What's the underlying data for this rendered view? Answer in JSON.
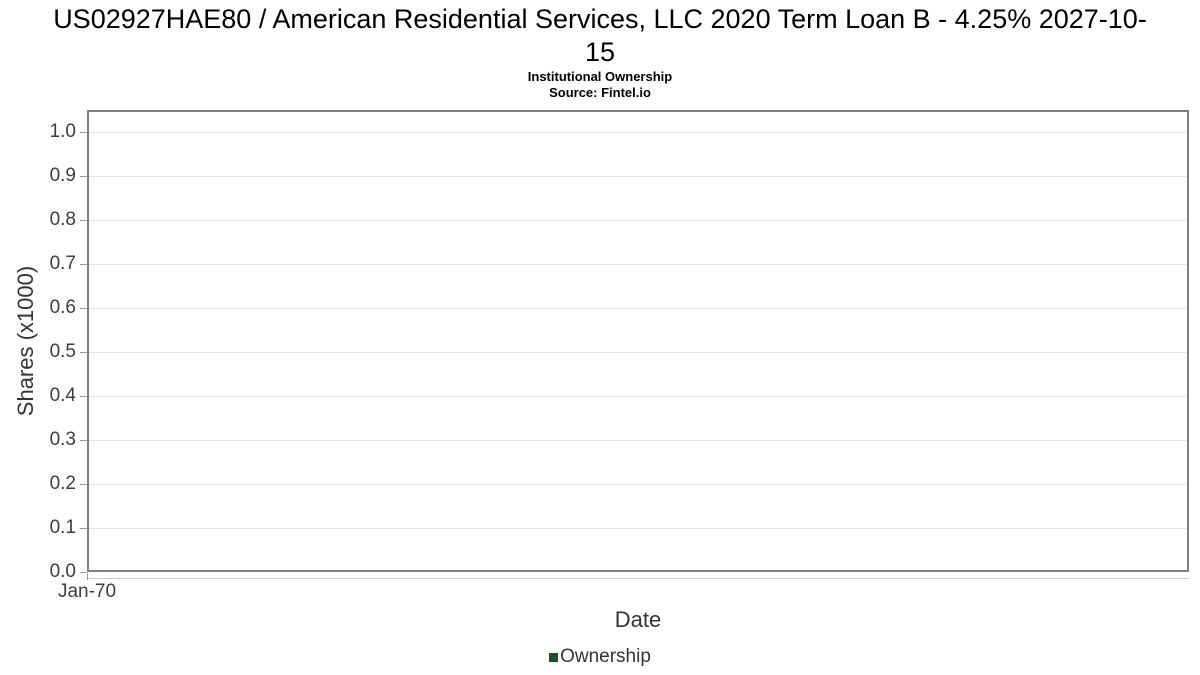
{
  "chart_data": {
    "type": "line",
    "title": "US02927HAE80 / American Residential Services, LLC 2020 Term Loan B - 4.25% 2027-10-15",
    "subtitle": "Institutional Ownership",
    "source": "Source: Fintel.io",
    "xlabel": "Date",
    "ylabel": "Shares (x1000)",
    "x_ticks": [
      "Jan-70"
    ],
    "y_ticks": [
      "0.0",
      "0.1",
      "0.2",
      "0.3",
      "0.4",
      "0.5",
      "0.6",
      "0.7",
      "0.8",
      "0.9",
      "1.0"
    ],
    "ylim": [
      0,
      1.05
    ],
    "grid": true,
    "legend_position": "bottom",
    "series": [
      {
        "name": "Ownership",
        "color": "#1f4e2c",
        "x": [],
        "values": []
      }
    ],
    "style_colors": {
      "plot_border": "#7f7f7f",
      "gridline": "#e6e6e6",
      "tick": "#999999",
      "tick_label": "#3d3d3d",
      "axis_title": "#333333",
      "title_text": "#000000"
    }
  }
}
